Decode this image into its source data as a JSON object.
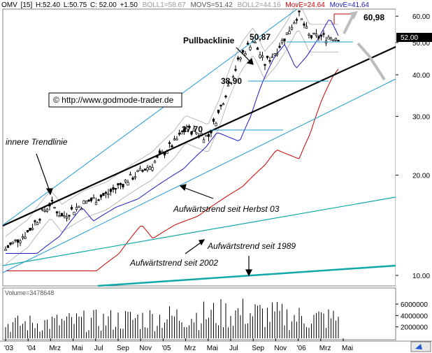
{
  "header": {
    "symbol": "OMV",
    "interval": "[15]",
    "high": "H:52.40",
    "low": "L:50.75",
    "close": "C: 52.00",
    "change": "+1.50",
    "boll1": "BOLL1=58.67",
    "movs": "MOVS=51.42",
    "boll2": "BOLL2=44.16",
    "move1": "MovE=24.64",
    "move2": "MovE=41.64"
  },
  "copyright": "© http://www.godmode-trader.de",
  "price_marker": "52.00",
  "annotations": {
    "pullback": "Pullbacklinie",
    "inner_trend": "innere Trendlinie",
    "trend_autumn03": "Aufwärtstrend seit Herbst 03",
    "trend_1989": "Aufwärtstrend seit 1989",
    "trend_2002": "Aufwärtstrend seit 2002",
    "level_6098": "60,98",
    "level_5087": "50,87",
    "level_3890": "38,90",
    "level_2770": "27,70"
  },
  "volume_label": "Volume=3478648",
  "colors": {
    "black_trend": "#000000",
    "channel": "#1e9ad6",
    "teal_trend": "#10a8a8",
    "ma_blue": "#1d1dbf",
    "ma_red": "#cc0000",
    "bollinger": "#a8a8a8",
    "projection": "#bdbdbd",
    "marker_bg": "#000000"
  },
  "chart_data": {
    "type": "candlestick",
    "x_ticks": [
      "'03",
      "'04",
      "Mrz",
      "Mai",
      "Jul",
      "Sep",
      "Nov",
      "'05",
      "Mrz",
      "Mai",
      "Jul",
      "Sep",
      "Nov",
      "'06",
      "Mrz",
      "Mai"
    ],
    "y_ticks": [
      10,
      20,
      30,
      40,
      50,
      60
    ],
    "y_tick_labels": [
      "10.00",
      "20.00",
      "30.00",
      "40.00",
      "50.00",
      "60.00"
    ],
    "ylim": [
      9.3,
      63
    ],
    "y_scale": "log",
    "volume_ticks": [
      2000000,
      4000000,
      6000000
    ],
    "volume_tick_labels": [
      "2000000",
      "4000000",
      "6000000"
    ],
    "volume_ylim": [
      0,
      7600000
    ],
    "horizontal_levels": [
      60.98,
      50.87,
      38.9,
      27.7
    ],
    "last_close": 52.0,
    "grid": false,
    "legend": "none",
    "price_series": [
      {
        "date": "2003-10",
        "close": 11.0
      },
      {
        "date": "2003-12",
        "close": 12.0
      },
      {
        "date": "2004-02",
        "close": 13.5
      },
      {
        "date": "2004-04",
        "close": 16.5
      },
      {
        "date": "2004-05",
        "close": 15.0
      },
      {
        "date": "2004-07",
        "close": 16.5
      },
      {
        "date": "2004-09",
        "close": 17.5
      },
      {
        "date": "2004-11",
        "close": 19.5
      },
      {
        "date": "2005-01",
        "close": 21.5
      },
      {
        "date": "2005-03",
        "close": 25.0
      },
      {
        "date": "2005-04",
        "close": 27.7
      },
      {
        "date": "2005-06",
        "close": 26.0
      },
      {
        "date": "2005-07",
        "close": 31.0
      },
      {
        "date": "2005-08",
        "close": 38.9
      },
      {
        "date": "2005-09",
        "close": 46.0
      },
      {
        "date": "2005-10",
        "close": 50.87
      },
      {
        "date": "2005-11",
        "close": 43.0
      },
      {
        "date": "2005-12",
        "close": 47.0
      },
      {
        "date": "2006-01",
        "close": 53.0
      },
      {
        "date": "2006-02",
        "close": 60.98
      },
      {
        "date": "2006-03",
        "close": 52.0
      }
    ],
    "volume_series": [
      {
        "date": "2004",
        "volume": 2500000
      },
      {
        "date": "2005",
        "volume": 3500000
      },
      {
        "date": "2005-09",
        "volume": 4500000
      },
      {
        "date": "2006-03",
        "volume": 3478648
      }
    ],
    "moving_averages": [
      {
        "name": "MovE",
        "value": 24.64,
        "color": "#cc0000"
      },
      {
        "name": "MovE",
        "value": 41.64,
        "color": "#1d1dbf"
      }
    ]
  }
}
